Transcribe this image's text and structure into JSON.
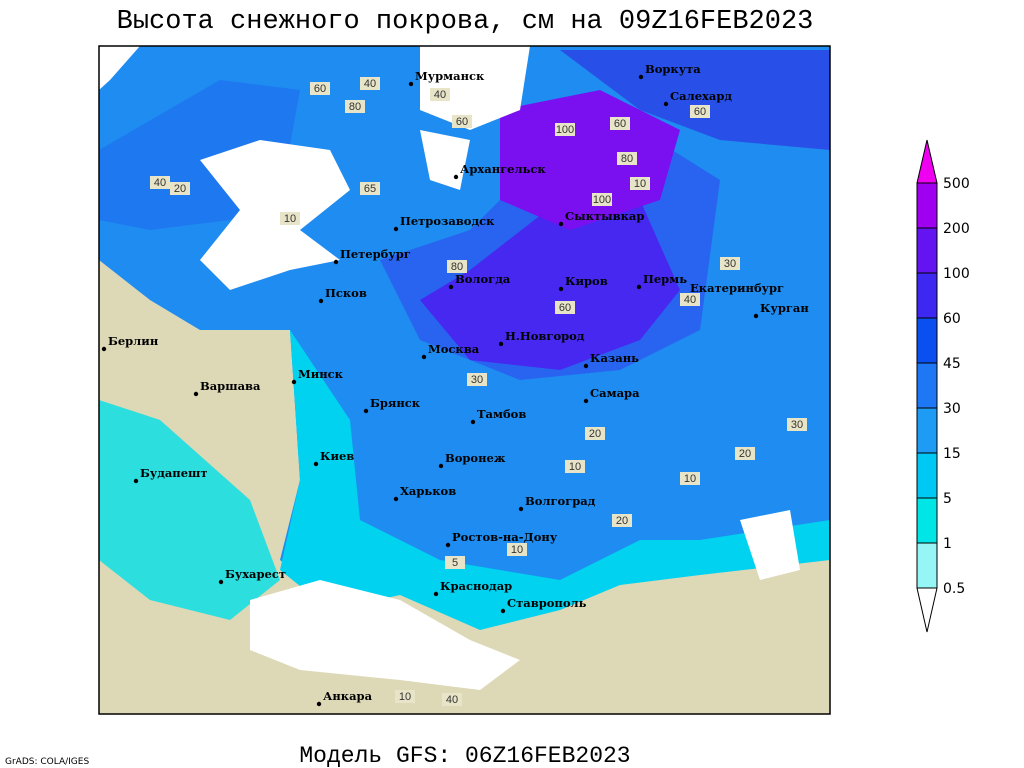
{
  "title": "Высота снежного покрова, см на 09Z16FEB2023",
  "footer": "Модель GFS: 06Z16FEB2023",
  "credit": "GrADS: COLA/IGES",
  "cities": [
    "Мурманск",
    "Воркута",
    "Салехард",
    "Архангельск",
    "Петрозаводск",
    "Сыктывкар",
    "Петербург",
    "Вологда",
    "Киров",
    "Пермь",
    "Екатеринбург",
    "Курган",
    "Псков",
    "Берлин",
    "Москва",
    "Н.Новгород",
    "Казань",
    "Варшава",
    "Минск",
    "Самара",
    "Брянск",
    "Тамбов",
    "Воронеж",
    "Киев",
    "Будапешт",
    "Харьков",
    "Волгоград",
    "Ростов-на-Дону",
    "Бухарест",
    "Краснодар",
    "Ставрополь",
    "Анкара"
  ],
  "contour_labels": [
    40,
    60,
    80,
    40,
    60,
    100,
    60,
    100,
    80,
    60,
    20,
    40,
    10,
    65,
    10,
    80,
    30,
    60,
    30,
    40,
    20,
    10,
    30,
    20,
    10,
    20,
    10,
    5,
    10,
    40
  ],
  "legend": {
    "levels": [
      0.5,
      1,
      5,
      15,
      30,
      45,
      60,
      100,
      200,
      500
    ],
    "colors": [
      "#ffffff",
      "#96f5f5",
      "#00e6e6",
      "#00c8f5",
      "#1e9bf5",
      "#1e78f5",
      "#0a50f0",
      "#3c28f0",
      "#6414f0",
      "#a000f0",
      "#f000f0"
    ]
  }
}
